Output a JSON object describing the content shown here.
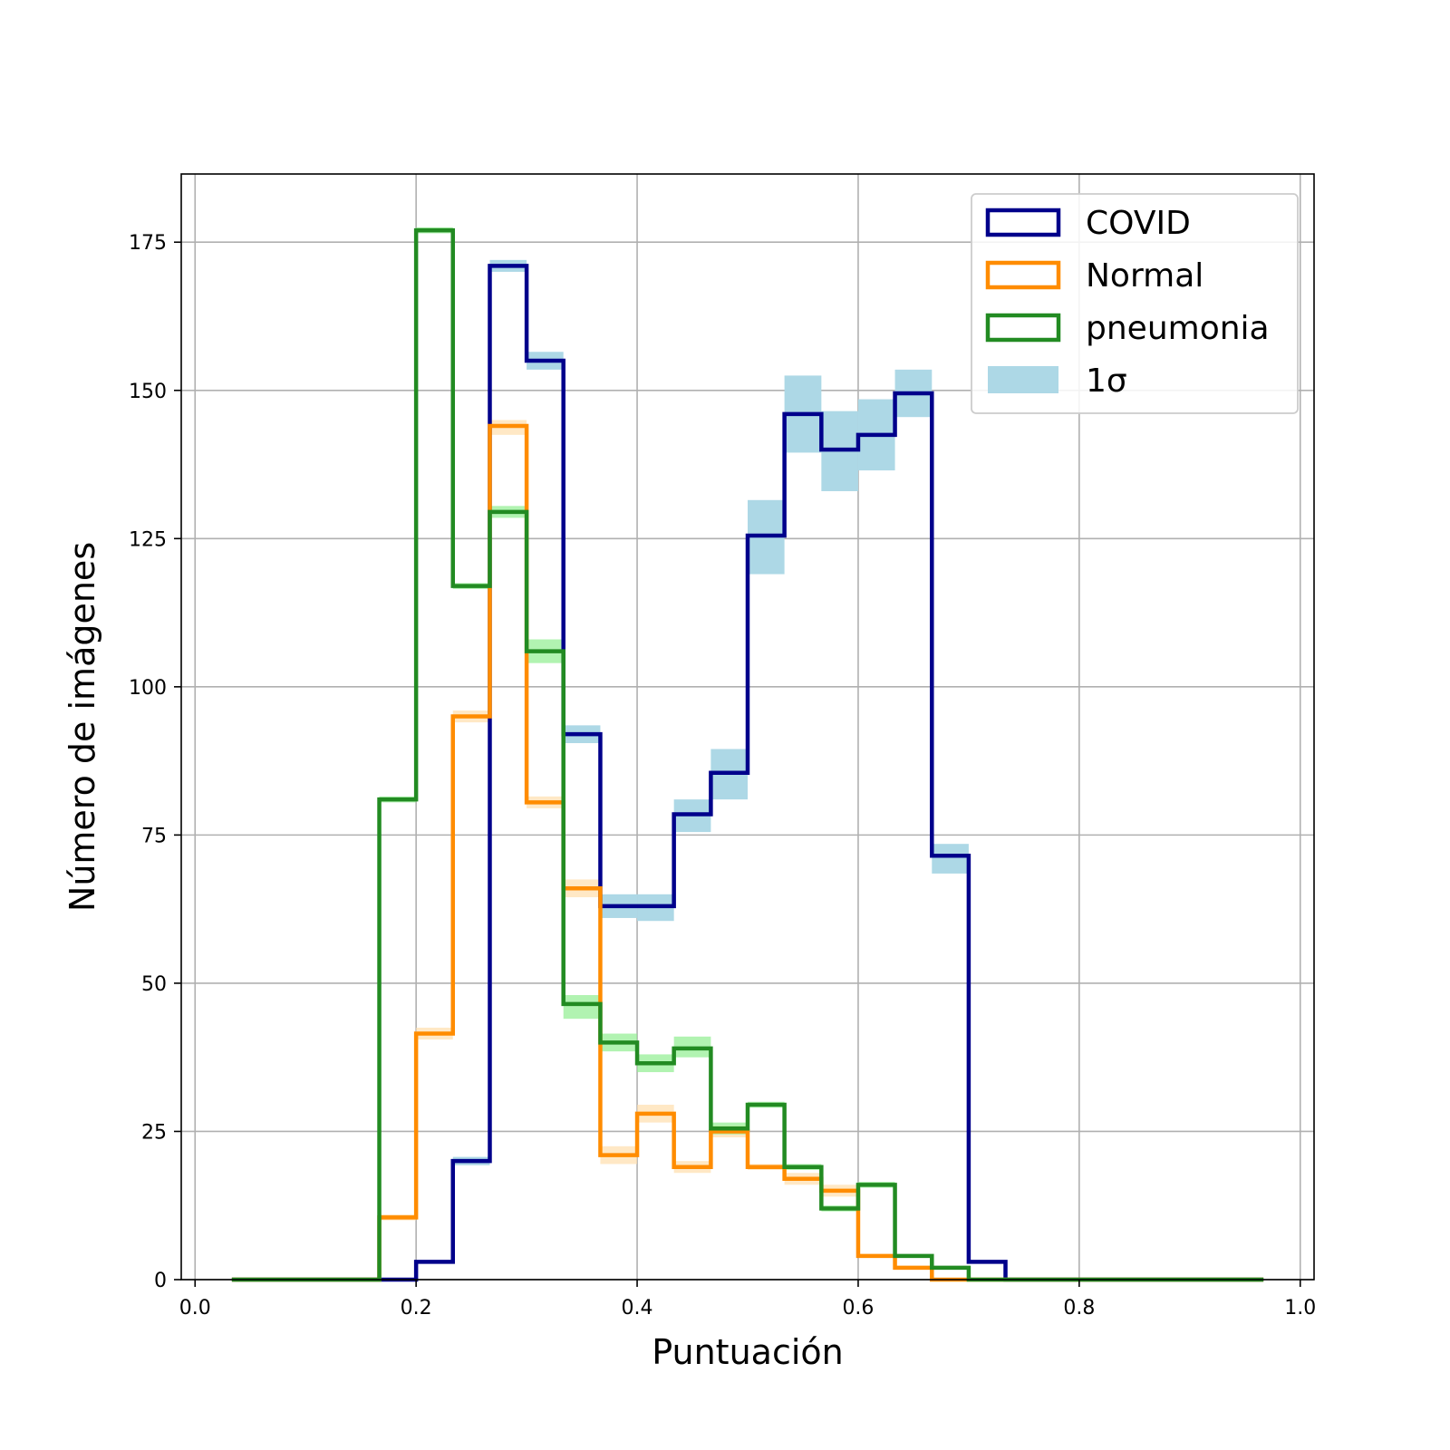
{
  "chart_data": {
    "type": "histogram-step",
    "xlabel": "Puntuación",
    "ylabel": "Número de imágenes",
    "xlim": [
      -0.0125,
      1.0125
    ],
    "ylim": [
      0,
      186.5
    ],
    "xticks": [
      0.0,
      0.2,
      0.4,
      0.6,
      0.8,
      1.0
    ],
    "xtick_labels": [
      "0.0",
      "0.2",
      "0.4",
      "0.6",
      "0.8",
      "1.0"
    ],
    "yticks": [
      0,
      25,
      50,
      75,
      100,
      125,
      150,
      175
    ],
    "ytick_labels": [
      "0",
      "25",
      "50",
      "75",
      "100",
      "125",
      "150",
      "175"
    ],
    "grid": true,
    "legend_position": "upper right",
    "bin_edges": [
      0.0333,
      0.0667,
      0.1,
      0.1333,
      0.1667,
      0.2,
      0.2333,
      0.2667,
      0.3,
      0.3333,
      0.3667,
      0.4,
      0.4333,
      0.4667,
      0.5,
      0.5333,
      0.5667,
      0.6,
      0.6333,
      0.6667,
      0.7,
      0.7333,
      0.7667,
      0.8,
      0.8333,
      0.8667,
      0.9,
      0.9333,
      0.9667
    ],
    "series": [
      {
        "name": "COVID",
        "color": "#00008b",
        "band_color": "#add8e6",
        "values": [
          0,
          0,
          0,
          0,
          0,
          3,
          20,
          171,
          155,
          92,
          63,
          63,
          78.5,
          85.5,
          125.5,
          146,
          140,
          142.5,
          149.5,
          71.5,
          3,
          0,
          0,
          0,
          0,
          0,
          0,
          0
        ],
        "sigma_low": [
          0,
          0,
          0,
          0,
          0,
          2.8,
          19.3,
          170,
          153.5,
          90.5,
          61,
          60.5,
          75.5,
          81,
          119,
          139.5,
          133,
          136.5,
          145.5,
          68.5,
          2.8,
          0,
          0,
          0,
          0,
          0,
          0,
          0
        ],
        "sigma_high": [
          0,
          0,
          0,
          0,
          0,
          3.2,
          20.7,
          172,
          156.5,
          93.5,
          65,
          65,
          81,
          89.5,
          131.5,
          152.5,
          146.5,
          148.5,
          153.5,
          73.5,
          3.2,
          0,
          0,
          0,
          0,
          0,
          0,
          0
        ]
      },
      {
        "name": "Normal",
        "color": "#ff8c00",
        "band_color": "#ffdead",
        "values": [
          0,
          0,
          0,
          0,
          10.5,
          41.5,
          95,
          144,
          80.5,
          66,
          21,
          28,
          19,
          25,
          19,
          17,
          15,
          4,
          2,
          0,
          0,
          0,
          0,
          0,
          0,
          0,
          0,
          0
        ],
        "sigma_low": [
          0,
          0,
          0,
          0,
          10,
          40.5,
          94,
          142.5,
          79.5,
          64.5,
          19.5,
          26.5,
          18,
          24,
          18.5,
          16,
          14,
          3.8,
          1.8,
          0,
          0,
          0,
          0,
          0,
          0,
          0,
          0,
          0
        ],
        "sigma_high": [
          0,
          0,
          0,
          0,
          11,
          42.5,
          96,
          145,
          81.5,
          67.5,
          22.5,
          29.5,
          20,
          26,
          19.5,
          18,
          16,
          4.2,
          2.2,
          0,
          0,
          0,
          0,
          0,
          0,
          0,
          0,
          0
        ]
      },
      {
        "name": "pneumonia",
        "color": "#228b22",
        "band_color": "#90ee90",
        "values": [
          0,
          0,
          0,
          0,
          81,
          177,
          117,
          129.5,
          106,
          46.5,
          40,
          36.5,
          39,
          25.5,
          29.5,
          19,
          12,
          16,
          4,
          2,
          0,
          0,
          0,
          0,
          0,
          0,
          0,
          0
        ],
        "sigma_low": [
          0,
          0,
          0,
          0,
          80.5,
          176.5,
          116.5,
          128.5,
          104,
          44,
          38.5,
          35,
          37.5,
          24.5,
          29,
          18.5,
          11.5,
          15.5,
          3.8,
          1.8,
          0,
          0,
          0,
          0,
          0,
          0,
          0,
          0
        ],
        "sigma_high": [
          0,
          0,
          0,
          0,
          81.5,
          177.5,
          117.5,
          130.5,
          108,
          48,
          41.5,
          38,
          41,
          26.5,
          30,
          19.5,
          12.5,
          16.5,
          4.2,
          2.2,
          0,
          0,
          0,
          0,
          0,
          0,
          0,
          0
        ]
      }
    ],
    "legend": [
      {
        "label": "COVID",
        "kind": "outline",
        "color": "#00008b"
      },
      {
        "label": "Normal",
        "kind": "outline",
        "color": "#ff8c00"
      },
      {
        "label": "pneumonia",
        "kind": "outline",
        "color": "#228b22"
      },
      {
        "label": "1σ",
        "kind": "fill",
        "color": "#add8e6"
      }
    ]
  }
}
